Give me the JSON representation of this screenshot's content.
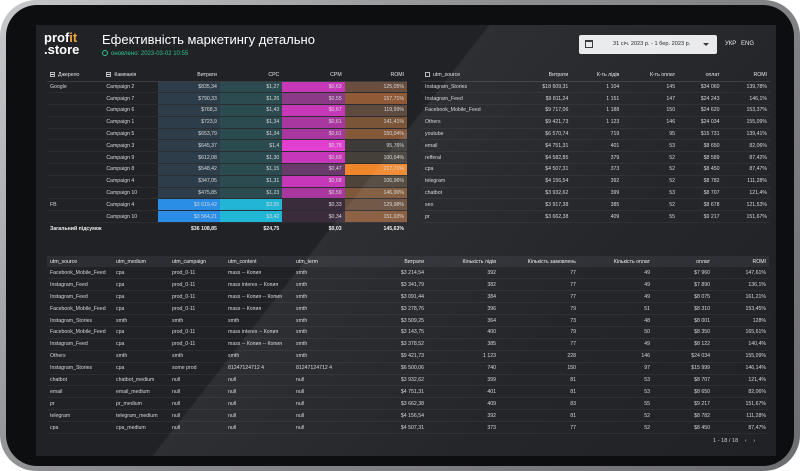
{
  "header": {
    "logo_line1": "prof",
    "logo_accent": "it",
    "logo_line2": ".store",
    "title": "Ефективність маркетингу детально",
    "updated": "оновлено: 2023-03-02 10:55",
    "date_range": "31 січ. 2023 р. - 1 бер. 2023 р.",
    "lang_ukr": "УКР",
    "lang_eng": "ENG"
  },
  "colors": {
    "accent_green": "#31c28b",
    "accent_orange": "#f2a23a"
  },
  "icons": [
    "clock-icon",
    "calendar-icon",
    "dropdown-arrow-icon",
    "collapse-icon",
    "checkbox-icon",
    "chevron-left-icon",
    "chevron-right-icon"
  ],
  "pivot": {
    "headers": [
      "Джерело",
      "Кампанія",
      "Витрати",
      "CPC",
      "CPM",
      "ROMI"
    ],
    "rows": [
      {
        "source": "Google",
        "campaign": "Campaign 2",
        "cost": "$835,34",
        "cpc": "$1,27",
        "cpm": "$0,63",
        "romi": "125,05%",
        "cost_c": "#2d3e4a",
        "cpc_c": "#2b4b50",
        "cpm_c": "#c738b8",
        "romi_c": "#6b4f3e"
      },
      {
        "source": "",
        "campaign": "Campaign 7",
        "cost": "$790,33",
        "cpc": "$1,26",
        "cpm": "$0,55",
        "romi": "157,71%",
        "cost_c": "#2d3e4a",
        "cpc_c": "#2b4b50",
        "cpm_c": "#8a3a86",
        "romi_c": "#8f5a35"
      },
      {
        "source": "",
        "campaign": "Campaign 6",
        "cost": "$768,3",
        "cpc": "$1,43",
        "cpm": "$0,67",
        "romi": "119,99%",
        "cost_c": "#2d3e4a",
        "cpc_c": "#2b4b50",
        "cpm_c": "#c738b8",
        "romi_c": "#5e4a3f"
      },
      {
        "source": "",
        "campaign": "Campaign 1",
        "cost": "$723,9",
        "cpc": "$1,34",
        "cpm": "$0,61",
        "romi": "141,41%",
        "cost_c": "#2d3e4a",
        "cpc_c": "#2b4b50",
        "cpm_c": "#a8389f",
        "romi_c": "#7a5538"
      },
      {
        "source": "",
        "campaign": "Campaign 5",
        "cost": "$653,79",
        "cpc": "$1,34",
        "cpm": "$0,61",
        "romi": "150,04%",
        "cost_c": "#2d3e4a",
        "cpc_c": "#2b4b50",
        "cpm_c": "#a8389f",
        "romi_c": "#86583a"
      },
      {
        "source": "",
        "campaign": "Campaign 3",
        "cost": "$645,37",
        "cpc": "$1,4",
        "cpm": "$0,75",
        "romi": "95,76%",
        "cost_c": "#2d3e4a",
        "cpc_c": "#2b4b50",
        "cpm_c": "#e03fd0",
        "romi_c": "#3d3a38"
      },
      {
        "source": "",
        "campaign": "Campaign 9",
        "cost": "$612,08",
        "cpc": "$1,30",
        "cpm": "$0,69",
        "romi": "100,04%",
        "cost_c": "#2d3e4a",
        "cpc_c": "#2b4b50",
        "cpm_c": "#c738b8",
        "romi_c": "#46403a"
      },
      {
        "source": "",
        "campaign": "Campaign 8",
        "cost": "$548,42",
        "cpc": "$1,15",
        "cpm": "$0,47",
        "romi": "217,71%",
        "cost_c": "#2d3e4a",
        "cpc_c": "#2b4b50",
        "cpm_c": "#6a3a6a",
        "romi_c": "#f0862a"
      },
      {
        "source": "",
        "campaign": "Campaign 4",
        "cost": "$347,05",
        "cpc": "$1,31",
        "cpm": "$0,68",
        "romi": "106,96%",
        "cost_c": "#2d3e4a",
        "cpc_c": "#2b4b50",
        "cpm_c": "#c738b8",
        "romi_c": "#4f4439"
      },
      {
        "source": "",
        "campaign": "Campaign 10",
        "cost": "$475,85",
        "cpc": "$1,23",
        "cpm": "$0,59",
        "romi": "146,00%",
        "cost_c": "#2d3e4a",
        "cpc_c": "#2b4b50",
        "cpm_c": "#a8389f",
        "romi_c": "#7f5739"
      },
      {
        "source": "FB",
        "campaign": "Campaign 4",
        "cost": "$3 619,42",
        "cpc": "$3,55",
        "cpm": "$0,33",
        "romi": "129,98%",
        "cost_c": "#2a8ee6",
        "cpc_c": "#22b6d6",
        "cpm_c": "#3b2c3b",
        "romi_c": "#6a4f3d"
      },
      {
        "source": "",
        "campaign": "Campaign 10",
        "cost": "$3 564,21",
        "cpc": "$3,42",
        "cpm": "$0,34",
        "romi": "151,03%",
        "cost_c": "#2a8ee6",
        "cpc_c": "#22b6d6",
        "cpm_c": "#3b2c3b",
        "romi_c": "#86583a"
      }
    ],
    "total": {
      "label": "Загальний підсумок",
      "cost": "$36 108,85",
      "cpc": "$24,75",
      "cpm": "$0,03",
      "romi": "145,63%"
    }
  },
  "utm_summary": {
    "headers": [
      "utm_source",
      "Витрати",
      "К-ть лідів",
      "К-ть оплат",
      "оплат",
      "ROMI"
    ],
    "rows": [
      [
        "Instagram_Stories",
        "$18 609,31",
        "1 104",
        "145",
        "$34 060",
        "139,78%"
      ],
      [
        "Instagram_Feed",
        "$9 811,24",
        "1 151",
        "147",
        "$24 243",
        "146,1%"
      ],
      [
        "Facebook_Mobile_Feed",
        "$9 717,06",
        "1 188",
        "150",
        "$24 620",
        "153,37%"
      ],
      [
        "Others",
        "$9 421,73",
        "1 123",
        "146",
        "$24 034",
        "155,09%"
      ],
      [
        "youtube",
        "$6 570,74",
        "719",
        "95",
        "$15 731",
        "139,41%"
      ],
      [
        "email",
        "$4 751,31",
        "401",
        "53",
        "$8 650",
        "82,06%"
      ],
      [
        "refferal",
        "$4 582,85",
        "379",
        "52",
        "$8 589",
        "87,42%"
      ],
      [
        "cpa",
        "$4 507,31",
        "373",
        "52",
        "$8 450",
        "87,47%"
      ],
      [
        "telegram",
        "$4 156,54",
        "392",
        "52",
        "$8 782",
        "111,28%"
      ],
      [
        "chatbot",
        "$3 932,62",
        "399",
        "53",
        "$8 707",
        "121,4%"
      ],
      [
        "seo",
        "$3 917,38",
        "385",
        "52",
        "$8 678",
        "121,53%"
      ],
      [
        "pr",
        "$3 662,38",
        "409",
        "55",
        "$9 217",
        "151,67%"
      ]
    ]
  },
  "detail": {
    "headers": [
      "utm_source",
      "utm_medium",
      "utm_campaign",
      "utm_content",
      "utm_term",
      "Витрати",
      "Кількість лідів",
      "Кількість замовлень",
      "Кількість оплат",
      "оплат",
      "ROMI"
    ],
    "rows": [
      [
        "Facebook_Mobile_Feed",
        "cpa",
        "prod_0-11",
        "mass -- Копия",
        "smth",
        "$3 214,54",
        "392",
        "77",
        "49",
        "$7 960",
        "147,61%"
      ],
      [
        "Instagram_Feed",
        "cpa",
        "prod_0-11",
        "mass interes -- Копия",
        "smth",
        "$3 341,79",
        "382",
        "77",
        "49",
        "$7 890",
        "136,1%"
      ],
      [
        "Instagram_Feed",
        "cpa",
        "prod_0-11",
        "mass -- Копия -- Копия",
        "smth",
        "$3 091,44",
        "384",
        "77",
        "49",
        "$8 075",
        "161,21%"
      ],
      [
        "Facebook_Mobile_Feed",
        "cpa",
        "prod_0-11",
        "mass -- Копия",
        "smth",
        "$3 278,76",
        "396",
        "79",
        "51",
        "$8 310",
        "153,45%"
      ],
      [
        "Instagram_Stories",
        "smth",
        "smth",
        "smth",
        "smth",
        "$3 509,25",
        "364",
        "73",
        "48",
        "$8 001",
        "128%"
      ],
      [
        "Facebook_Mobile_Feed",
        "cpa",
        "prod_0-11",
        "mass interes -- Копия",
        "smth",
        "$3 143,75",
        "400",
        "79",
        "50",
        "$8 350",
        "165,61%"
      ],
      [
        "Instagram_Feed",
        "cpa",
        "prod_0-11",
        "mass -- Копия -- Копия",
        "smth",
        "$3 378,52",
        "385",
        "77",
        "49",
        "$8 122",
        "140,4%"
      ],
      [
        "Others",
        "smth",
        "smth",
        "smth",
        "smth",
        "$9 421,73",
        "1 123",
        "228",
        "146",
        "$24 034",
        "155,09%"
      ],
      [
        "Instagram_Stories",
        "cpa",
        "some prod",
        "81247124712 4",
        "81247124712 4",
        "$6 500,06",
        "740",
        "150",
        "97",
        "$15 999",
        "146,14%"
      ],
      [
        "chatbot",
        "chatbot_medium",
        "null",
        "null",
        "null",
        "$3 932,62",
        "399",
        "81",
        "53",
        "$8 707",
        "121,4%"
      ],
      [
        "email",
        "email_medium",
        "null",
        "null",
        "null",
        "$4 751,31",
        "401",
        "81",
        "53",
        "$8 650",
        "82,06%"
      ],
      [
        "pr",
        "pr_medium",
        "null",
        "null",
        "null",
        "$3 662,38",
        "409",
        "83",
        "55",
        "$9 217",
        "151,67%"
      ],
      [
        "telegram",
        "telegram_medium",
        "null",
        "null",
        "null",
        "$4 156,54",
        "392",
        "81",
        "52",
        "$8 782",
        "111,28%"
      ],
      [
        "cpa",
        "cpa_medium",
        "null",
        "null",
        "null",
        "$4 507,31",
        "373",
        "77",
        "52",
        "$8 450",
        "87,47%"
      ]
    ],
    "pager": "1 - 18 / 18"
  }
}
